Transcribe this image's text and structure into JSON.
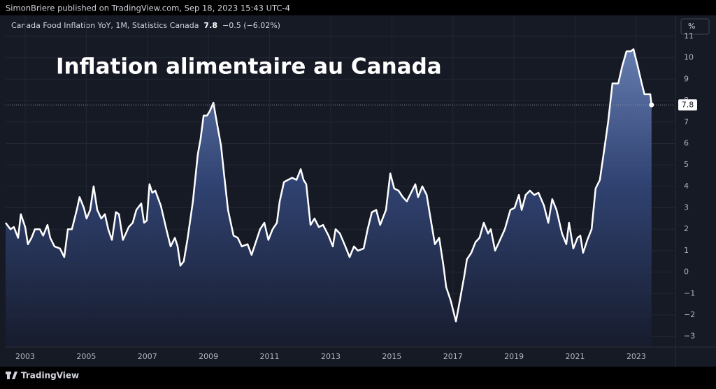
{
  "header": {
    "published": "SimonBriere published on TradingView.com, Sep 18, 2023 15:43 UTC-4"
  },
  "footer": {
    "brand": "TradingView"
  },
  "chart_data": {
    "type": "area",
    "title": "Inflation alimentaire au Canada",
    "change": "−0.5 (−6.02%)",
    "unit_button": "%",
    "xlim": [
      2002.36,
      2024.26
    ],
    "xticks": [
      2003,
      2005,
      2007,
      2009,
      2011,
      2013,
      2015,
      2017,
      2019,
      2021,
      2023
    ],
    "ylim": [
      -3.5,
      11.13
    ],
    "yticks": [
      {
        "value": -3,
        "label": "−3"
      },
      {
        "value": -2,
        "label": "−2"
      },
      {
        "value": -1,
        "label": "−1"
      },
      0,
      1,
      2,
      3,
      4,
      5,
      6,
      7,
      8,
      9,
      10,
      11
    ],
    "grid": true,
    "x": [
      2002.36,
      2002.52,
      2002.63,
      2002.77,
      2002.86,
      2003.0,
      2003.09,
      2003.21,
      2003.32,
      2003.48,
      2003.59,
      2003.73,
      2003.82,
      2003.96,
      2004.14,
      2004.28,
      2004.4,
      2004.53,
      2004.69,
      2004.78,
      2004.92,
      2005.01,
      2005.13,
      2005.24,
      2005.36,
      2005.49,
      2005.61,
      2005.72,
      2005.84,
      2005.97,
      2006.07,
      2006.2,
      2006.39,
      2006.52,
      2006.64,
      2006.8,
      2006.89,
      2006.98,
      2007.07,
      2007.16,
      2007.26,
      2007.44,
      2007.62,
      2007.76,
      2007.9,
      2007.99,
      2008.08,
      2008.19,
      2008.31,
      2008.49,
      2008.65,
      2008.74,
      2008.84,
      2008.95,
      2009.04,
      2009.16,
      2009.27,
      2009.41,
      2009.5,
      2009.64,
      2009.82,
      2009.96,
      2010.09,
      2010.28,
      2010.41,
      2010.55,
      2010.69,
      2010.83,
      2010.96,
      2011.1,
      2011.24,
      2011.33,
      2011.47,
      2011.6,
      2011.74,
      2011.88,
      2012.02,
      2012.11,
      2012.2,
      2012.34,
      2012.47,
      2012.61,
      2012.75,
      2012.93,
      2013.07,
      2013.16,
      2013.3,
      2013.48,
      2013.62,
      2013.76,
      2013.89,
      2014.08,
      2014.21,
      2014.35,
      2014.49,
      2014.62,
      2014.81,
      2014.95,
      2015.08,
      2015.22,
      2015.36,
      2015.49,
      2015.63,
      2015.77,
      2015.86,
      2016.0,
      2016.14,
      2016.27,
      2016.41,
      2016.55,
      2016.69,
      2016.78,
      2016.92,
      2017.1,
      2017.23,
      2017.37,
      2017.46,
      2017.6,
      2017.74,
      2017.87,
      2018.01,
      2018.15,
      2018.24,
      2018.38,
      2018.51,
      2018.7,
      2018.88,
      2019.02,
      2019.16,
      2019.25,
      2019.38,
      2019.52,
      2019.66,
      2019.8,
      2019.98,
      2020.12,
      2020.25,
      2020.39,
      2020.57,
      2020.71,
      2020.8,
      2020.94,
      2021.08,
      2021.17,
      2021.26,
      2021.4,
      2021.54,
      2021.67,
      2021.81,
      2021.95,
      2022.08,
      2022.22,
      2022.41,
      2022.54,
      2022.68,
      2022.82,
      2022.91,
      2023.05,
      2023.18,
      2023.27,
      2023.46,
      2023.5
    ],
    "series": [
      {
        "name": "Canada Food Inflation YoY, 1M, Statistics Canada",
        "color": "#ffffff",
        "values": [
          2.3,
          2.0,
          2.1,
          1.6,
          2.7,
          2.1,
          1.3,
          1.6,
          2.0,
          2.0,
          1.7,
          2.2,
          1.6,
          1.2,
          1.1,
          0.7,
          2.0,
          2.0,
          2.9,
          3.5,
          3.0,
          2.5,
          2.9,
          4.0,
          2.9,
          2.5,
          2.7,
          2.0,
          1.5,
          2.8,
          2.7,
          1.5,
          2.1,
          2.3,
          2.9,
          3.2,
          2.3,
          2.4,
          4.1,
          3.7,
          3.8,
          3.1,
          2.0,
          1.2,
          1.6,
          1.2,
          0.3,
          0.5,
          1.5,
          3.3,
          5.5,
          6.2,
          7.3,
          7.3,
          7.5,
          7.9,
          7.0,
          5.9,
          4.7,
          2.9,
          1.7,
          1.6,
          1.2,
          1.3,
          0.8,
          1.4,
          2.0,
          2.3,
          1.5,
          2.0,
          2.3,
          3.3,
          4.2,
          4.3,
          4.4,
          4.3,
          4.8,
          4.3,
          4.1,
          2.2,
          2.5,
          2.1,
          2.2,
          1.7,
          1.2,
          2.0,
          1.8,
          1.2,
          0.7,
          1.2,
          1.0,
          1.1,
          2.0,
          2.8,
          2.9,
          2.2,
          2.9,
          4.6,
          3.9,
          3.8,
          3.5,
          3.3,
          3.7,
          4.1,
          3.5,
          4.0,
          3.6,
          2.5,
          1.3,
          1.6,
          0.3,
          -0.7,
          -1.3,
          -2.3,
          -1.3,
          -0.2,
          0.6,
          0.9,
          1.4,
          1.6,
          2.3,
          1.8,
          2.0,
          1.0,
          1.4,
          2.0,
          2.9,
          3.0,
          3.6,
          2.9,
          3.6,
          3.8,
          3.6,
          3.7,
          3.1,
          2.3,
          3.4,
          2.9,
          1.8,
          1.3,
          2.3,
          1.1,
          1.6,
          1.7,
          0.9,
          1.5,
          2.0,
          3.9,
          4.3,
          5.7,
          7.0,
          8.8,
          8.8,
          9.6,
          10.3,
          10.3,
          10.4,
          9.6,
          8.8,
          8.3,
          8.3,
          7.8
        ]
      }
    ]
  }
}
